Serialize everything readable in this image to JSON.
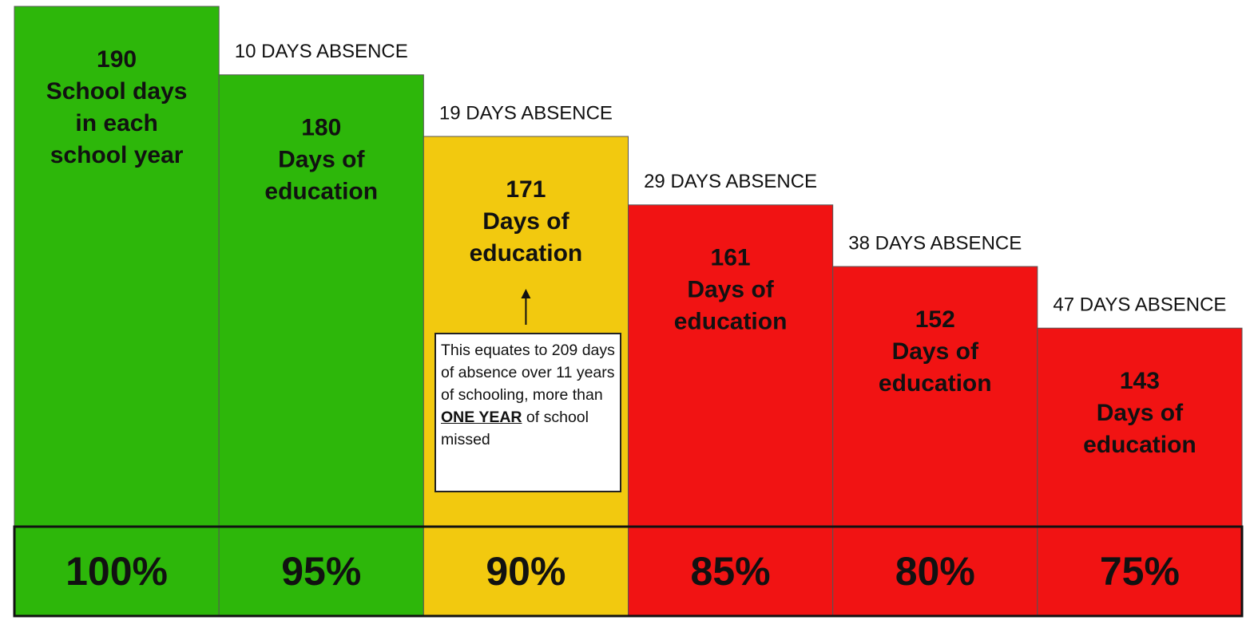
{
  "chart_data": {
    "type": "bar",
    "categories": [
      "100%",
      "95%",
      "90%",
      "85%",
      "80%",
      "75%"
    ],
    "values": [
      190,
      180,
      171,
      161,
      152,
      143
    ],
    "bar_labels": [
      [
        "School days",
        "in each",
        "school year"
      ],
      [
        "Days of",
        "education"
      ],
      [
        "Days of",
        "education"
      ],
      [
        "Days of",
        "education"
      ],
      [
        "Days of",
        "education"
      ],
      [
        "Days of",
        "education"
      ]
    ],
    "absence_labels": [
      null,
      "10 DAYS ABSENCE",
      "19 DAYS ABSENCE",
      "29 DAYS ABSENCE",
      "38 DAYS ABSENCE",
      "47 DAYS ABSENCE"
    ],
    "colors": [
      "#2db70a",
      "#2db70a",
      "#f2c90f",
      "#f11313",
      "#f11313",
      "#f11313"
    ],
    "ylim": [
      114,
      190
    ],
    "annotation": {
      "before": "This equates to 209 days of absence over 11 years of schooling, more than",
      "emphasis": "ONE YEAR",
      "after": "of school missed"
    }
  }
}
